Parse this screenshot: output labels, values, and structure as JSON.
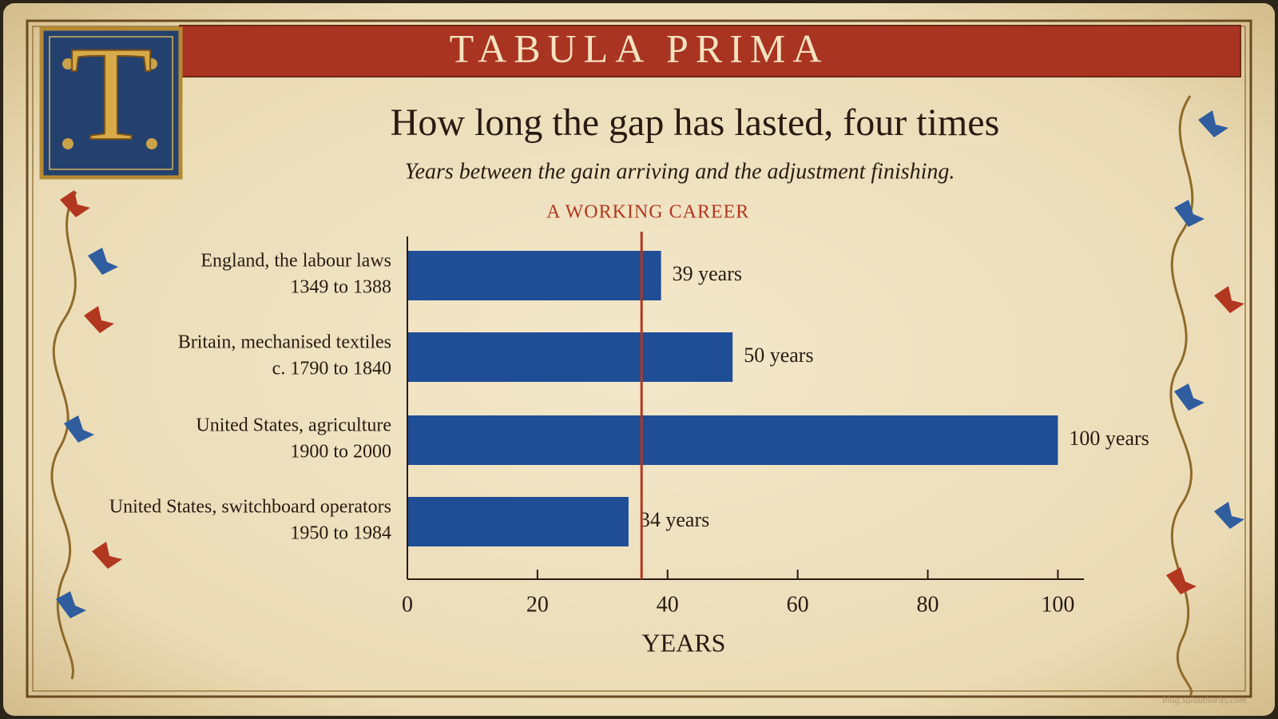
{
  "header": {
    "title": "TABULA PRIMA",
    "initial": "T"
  },
  "chart_data": {
    "type": "bar",
    "orientation": "horizontal",
    "title": "How long the gap has lasted, four times",
    "subtitle": "Years between the gain arriving and the adjustment finishing.",
    "categories": [
      "England, the labour laws",
      "Britain, mechanised textiles",
      "United States, agriculture",
      "United States, switchboard operators"
    ],
    "periods": [
      "1349 to 1388",
      "c. 1790 to 1840",
      "1900 to 2000",
      "1950 to 1984"
    ],
    "values": [
      39,
      50,
      100,
      34
    ],
    "value_labels": [
      "39 years",
      "50 years",
      "100 years",
      "34 years"
    ],
    "color": "#1f4e96",
    "xlabel": "YEARS",
    "xlim": [
      0,
      104
    ],
    "xticks": [
      0,
      20,
      40,
      60,
      80,
      100
    ],
    "reference_line": {
      "label": "A WORKING CAREER",
      "value": 36,
      "color": "#b3371f"
    }
  },
  "watermark": "blog.sqlauthority.com"
}
